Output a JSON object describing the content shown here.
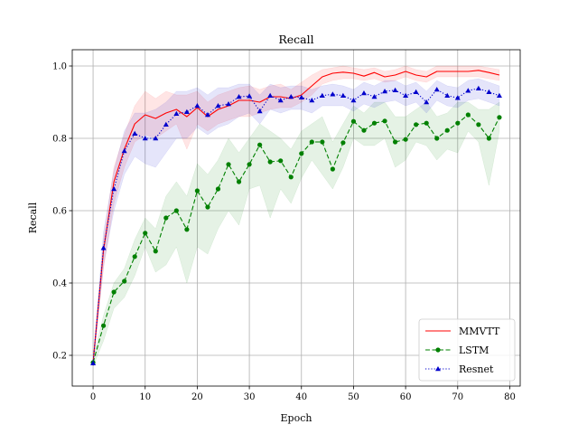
{
  "chart_data": {
    "type": "line",
    "title": "Recall",
    "xlabel": "Epoch",
    "ylabel": "Recall",
    "xlim": [
      -4,
      82
    ],
    "ylim": [
      0.115,
      1.045
    ],
    "xticks": [
      0,
      10,
      20,
      30,
      40,
      50,
      60,
      70,
      80
    ],
    "yticks": [
      0.2,
      0.4,
      0.6,
      0.8,
      1.0
    ],
    "xtick_labels": [
      "0",
      "10",
      "20",
      "30",
      "40",
      "50",
      "60",
      "70",
      "80"
    ],
    "ytick_labels": [
      "0.2",
      "0.4",
      "0.6",
      "0.8",
      "1.0"
    ],
    "grid": true,
    "legend_position": "lower-right",
    "x": [
      0,
      2,
      4,
      6,
      8,
      10,
      12,
      14,
      16,
      18,
      20,
      22,
      24,
      26,
      28,
      30,
      32,
      34,
      36,
      38,
      40,
      42,
      44,
      46,
      48,
      50,
      52,
      54,
      56,
      58,
      60,
      62,
      64,
      66,
      68,
      70,
      72,
      74,
      76,
      78
    ],
    "series": [
      {
        "name": "MMVTT",
        "color": "#ff0000",
        "linestyle": "solid",
        "marker": "none",
        "values": [
          0.18,
          0.49,
          0.68,
          0.77,
          0.84,
          0.865,
          0.855,
          0.87,
          0.88,
          0.86,
          0.885,
          0.86,
          0.88,
          0.89,
          0.905,
          0.905,
          0.9,
          0.915,
          0.915,
          0.91,
          0.92,
          0.945,
          0.97,
          0.98,
          0.983,
          0.98,
          0.972,
          0.982,
          0.97,
          0.975,
          0.985,
          0.975,
          0.97,
          0.985,
          0.985,
          0.985,
          0.985,
          0.988,
          0.982,
          0.975
        ],
        "band_lower": [
          0.17,
          0.44,
          0.62,
          0.72,
          0.79,
          0.81,
          0.8,
          0.82,
          0.84,
          0.77,
          0.84,
          0.82,
          0.84,
          0.85,
          0.86,
          0.86,
          0.87,
          0.88,
          0.885,
          0.885,
          0.9,
          0.92,
          0.95,
          0.96,
          0.965,
          0.965,
          0.96,
          0.965,
          0.955,
          0.96,
          0.97,
          0.96,
          0.955,
          0.97,
          0.97,
          0.97,
          0.97,
          0.97,
          0.965,
          0.96
        ],
        "band_upper": [
          0.19,
          0.52,
          0.72,
          0.81,
          0.89,
          0.93,
          0.91,
          0.93,
          0.92,
          0.92,
          0.93,
          0.9,
          0.92,
          0.93,
          0.94,
          0.945,
          0.935,
          0.945,
          0.95,
          0.935,
          0.955,
          0.975,
          0.99,
          0.995,
          1.0,
          0.995,
          0.99,
          0.995,
          0.985,
          0.99,
          1.0,
          0.99,
          0.985,
          1.0,
          1.0,
          1.0,
          1.0,
          1.0,
          0.995,
          0.99
        ]
      },
      {
        "name": "LSTM",
        "color": "#008000",
        "linestyle": "dashed",
        "marker": "circle",
        "values": [
          0.18,
          0.282,
          0.375,
          0.405,
          0.473,
          0.538,
          0.488,
          0.58,
          0.6,
          0.548,
          0.655,
          0.61,
          0.66,
          0.728,
          0.68,
          0.728,
          0.782,
          0.735,
          0.738,
          0.693,
          0.758,
          0.79,
          0.79,
          0.715,
          0.788,
          0.847,
          0.822,
          0.842,
          0.848,
          0.79,
          0.797,
          0.838,
          0.842,
          0.8,
          0.822,
          0.842,
          0.865,
          0.838,
          0.8,
          0.858
        ],
        "band_lower": [
          0.17,
          0.24,
          0.33,
          0.36,
          0.42,
          0.5,
          0.43,
          0.45,
          0.5,
          0.4,
          0.5,
          0.48,
          0.55,
          0.6,
          0.56,
          0.66,
          0.67,
          0.58,
          0.66,
          0.62,
          0.69,
          0.74,
          0.7,
          0.66,
          0.72,
          0.8,
          0.78,
          0.78,
          0.8,
          0.72,
          0.74,
          0.79,
          0.78,
          0.74,
          0.77,
          0.76,
          0.82,
          0.79,
          0.67,
          0.82
        ],
        "band_upper": [
          0.19,
          0.31,
          0.4,
          0.44,
          0.52,
          0.58,
          0.55,
          0.64,
          0.68,
          0.64,
          0.73,
          0.7,
          0.74,
          0.8,
          0.76,
          0.8,
          0.84,
          0.82,
          0.8,
          0.77,
          0.82,
          0.84,
          0.86,
          0.79,
          0.84,
          0.89,
          0.87,
          0.9,
          0.9,
          0.86,
          0.86,
          0.88,
          0.9,
          0.86,
          0.87,
          0.9,
          0.9,
          0.88,
          0.88,
          0.9
        ]
      },
      {
        "name": "Resnet",
        "color": "#0000cc",
        "linestyle": "dotted",
        "marker": "triangle",
        "values": [
          0.178,
          0.497,
          0.66,
          0.765,
          0.813,
          0.8,
          0.8,
          0.838,
          0.868,
          0.873,
          0.89,
          0.865,
          0.89,
          0.895,
          0.915,
          0.917,
          0.875,
          0.918,
          0.905,
          0.915,
          0.913,
          0.905,
          0.918,
          0.922,
          0.918,
          0.905,
          0.925,
          0.915,
          0.93,
          0.933,
          0.918,
          0.928,
          0.9,
          0.935,
          0.918,
          0.912,
          0.932,
          0.938,
          0.928,
          0.918
        ],
        "band_lower": [
          0.17,
          0.45,
          0.6,
          0.7,
          0.75,
          0.73,
          0.72,
          0.76,
          0.8,
          0.8,
          0.83,
          0.81,
          0.83,
          0.84,
          0.86,
          0.87,
          0.84,
          0.88,
          0.87,
          0.88,
          0.88,
          0.87,
          0.89,
          0.89,
          0.89,
          0.875,
          0.895,
          0.885,
          0.9,
          0.905,
          0.89,
          0.9,
          0.87,
          0.905,
          0.89,
          0.885,
          0.905,
          0.91,
          0.9,
          0.89
        ],
        "band_upper": [
          0.19,
          0.54,
          0.71,
          0.82,
          0.87,
          0.87,
          0.88,
          0.9,
          0.93,
          0.93,
          0.94,
          0.92,
          0.94,
          0.94,
          0.95,
          0.95,
          0.92,
          0.95,
          0.94,
          0.945,
          0.945,
          0.935,
          0.945,
          0.95,
          0.945,
          0.935,
          0.955,
          0.945,
          0.96,
          0.96,
          0.945,
          0.955,
          0.93,
          0.96,
          0.945,
          0.94,
          0.96,
          0.965,
          0.955,
          0.945
        ]
      }
    ]
  }
}
